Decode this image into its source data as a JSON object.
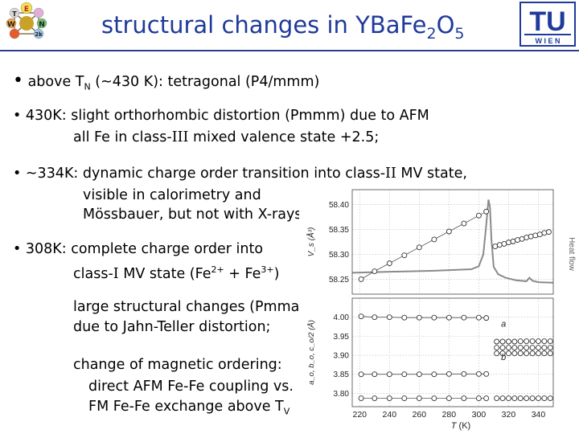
{
  "logo_left": {
    "letters": [
      "T",
      "E",
      "W",
      "N",
      "2k"
    ]
  },
  "logo_right": {
    "big": "TU",
    "small": "W I E N"
  },
  "title": {
    "pre": "structural changes in YBa",
    "el": "Fe",
    "s1": "2",
    "el2": "O",
    "s2": "5"
  },
  "bullets": [
    {
      "a": "above T",
      "sub": "N",
      "b": " (~430 K): tetragonal  (P4/mmm)"
    },
    {
      "text": "430K: slight orthorhombic distortion (Pmmm) due to AFM"
    },
    {
      "pre": "all Fe in class-",
      "roman": "III",
      "post": " mixed valence state +2.5;"
    },
    {
      "pre": "~334K: dynamic charge order transition into class-",
      "roman": "II",
      "post": " MV state,"
    },
    {
      "text": "visible in calorimetry and"
    },
    {
      "text": "Mössbauer, but not with X-rays"
    },
    {
      "text": "308K: complete charge order into"
    },
    {
      "pre": "class-",
      "roman": "I",
      "mid": " MV state (Fe",
      "sup1": "2+",
      "mid2": " + Fe",
      "sup2": "3+",
      "post": ")"
    },
    {
      "text": "large structural changes (Pmma)"
    },
    {
      "text": "due to Jahn-Teller distortion;"
    },
    {
      "text": "change of magnetic ordering:"
    },
    {
      "text": "direct AFM Fe-Fe coupling vs."
    },
    {
      "a": "FM Fe-Fe exchange above T",
      "sub": "V"
    }
  ],
  "chart_data": {
    "type": "scatter",
    "x_label_main": "T",
    "x_label_unit": " (K)",
    "x_ticks": [
      220,
      240,
      260,
      280,
      300,
      320,
      340
    ],
    "xlim": [
      215,
      350
    ],
    "top_panel": {
      "ylabel": "V_s (Å³)",
      "ylim": [
        58.22,
        58.43
      ],
      "y_ticks": [
        "58.40",
        "58.35",
        "58.30",
        "58.25"
      ],
      "y_tick_values": [
        58.4,
        58.35,
        58.3,
        58.25
      ],
      "right_label": "Heat flow",
      "volume_low_T": {
        "x": [
          221,
          230,
          240,
          250,
          260,
          270,
          280,
          290,
          300,
          305
        ],
        "y": [
          58.25,
          58.266,
          58.282,
          58.298,
          58.314,
          58.33,
          58.346,
          58.362,
          58.378,
          58.386
        ]
      },
      "volume_high_T": {
        "x": [
          311,
          314,
          317,
          320,
          323,
          326,
          329,
          332,
          335,
          338,
          341,
          344,
          347
        ],
        "y": [
          58.316,
          58.319,
          58.321,
          58.324,
          58.326,
          58.329,
          58.331,
          58.334,
          58.336,
          58.338,
          58.34,
          58.343,
          58.345
        ]
      },
      "heat_flow": {
        "x": [
          215,
          240,
          270,
          295,
          300,
          303,
          305,
          306.5,
          307.5,
          308.5,
          310,
          313,
          318,
          325,
          332,
          334,
          336,
          340,
          350
        ],
        "y": [
          58.263,
          58.265,
          58.267,
          58.27,
          58.276,
          58.3,
          58.36,
          58.41,
          58.395,
          58.33,
          58.275,
          58.26,
          58.253,
          58.248,
          58.246,
          58.253,
          58.247,
          58.244,
          58.243
        ]
      }
    },
    "bottom_panel": {
      "ylabel": "a_o, b_o, c_o/2 (Å)",
      "ylim": [
        3.765,
        4.05
      ],
      "y_ticks": [
        "4.00",
        "3.95",
        "3.90",
        "3.85",
        "3.80"
      ],
      "y_tick_values": [
        4.0,
        3.95,
        3.9,
        3.85,
        3.8
      ],
      "annotations": [
        {
          "text": "a",
          "x": 315,
          "y": 3.975
        },
        {
          "text": "b",
          "x": 315,
          "y": 3.887
        }
      ],
      "series": [
        {
          "x": [
            221,
            230,
            240,
            250,
            260,
            270,
            280,
            290,
            300,
            305
          ],
          "y": [
            4.002,
            4.0,
            4.0,
            3.999,
            3.999,
            3.999,
            3.999,
            3.999,
            3.999,
            3.998
          ]
        },
        {
          "x": [
            312,
            316,
            320,
            324,
            328,
            332,
            336,
            340,
            344,
            348
          ],
          "y": [
            3.936,
            3.936,
            3.936,
            3.936,
            3.937,
            3.937,
            3.937,
            3.937,
            3.937,
            3.937
          ]
        },
        {
          "x": [
            312,
            316,
            320,
            324,
            328,
            332,
            336,
            340,
            344,
            348
          ],
          "y": [
            3.92,
            3.92,
            3.92,
            3.92,
            3.92,
            3.92,
            3.92,
            3.92,
            3.92,
            3.92
          ]
        },
        {
          "x": [
            312,
            316,
            320,
            324,
            328,
            332,
            336,
            340,
            344,
            348
          ],
          "y": [
            3.905,
            3.905,
            3.905,
            3.905,
            3.905,
            3.905,
            3.905,
            3.905,
            3.905,
            3.905
          ]
        },
        {
          "x": [
            221,
            230,
            240,
            250,
            260,
            270,
            280,
            290,
            300,
            305
          ],
          "y": [
            3.85,
            3.85,
            3.85,
            3.85,
            3.85,
            3.85,
            3.851,
            3.851,
            3.851,
            3.851
          ]
        },
        {
          "x": [
            221,
            230,
            240,
            250,
            260,
            270,
            280,
            290,
            300,
            305
          ],
          "y": [
            3.787,
            3.787,
            3.787,
            3.787,
            3.787,
            3.787,
            3.787,
            3.787,
            3.787,
            3.787
          ]
        },
        {
          "x": [
            312,
            316,
            320,
            324,
            328,
            332,
            336,
            340,
            344,
            348
          ],
          "y": [
            3.787,
            3.787,
            3.787,
            3.787,
            3.787,
            3.787,
            3.787,
            3.787,
            3.787,
            3.787
          ]
        }
      ]
    }
  }
}
